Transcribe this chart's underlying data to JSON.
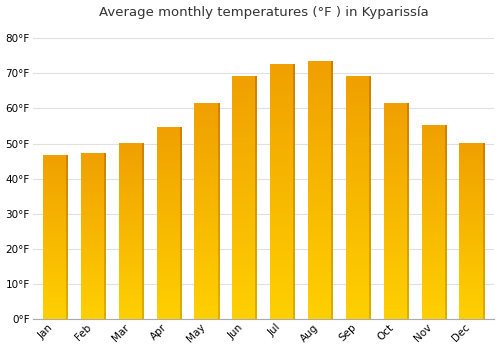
{
  "title": "Average monthly temperatures (°F ) in Kyparissía",
  "months": [
    "Jan",
    "Feb",
    "Mar",
    "Apr",
    "May",
    "Jun",
    "Jul",
    "Aug",
    "Sep",
    "Oct",
    "Nov",
    "Dec"
  ],
  "values": [
    46.4,
    47.1,
    50.0,
    54.3,
    61.2,
    68.9,
    72.3,
    73.2,
    68.9,
    61.2,
    55.0,
    49.8
  ],
  "bar_color_bottom": "#FFD000",
  "bar_color_top": "#F0A000",
  "bar_edge_right": "#D08000",
  "background_color": "#FFFFFF",
  "plot_bg_color": "#F8F8F8",
  "grid_color": "#E0E0E0",
  "yticks": [
    0,
    10,
    20,
    30,
    40,
    50,
    60,
    70,
    80
  ],
  "ylim": [
    0,
    84
  ],
  "title_fontsize": 9.5,
  "tick_fontsize": 7.5,
  "font_family": "DejaVu Sans"
}
